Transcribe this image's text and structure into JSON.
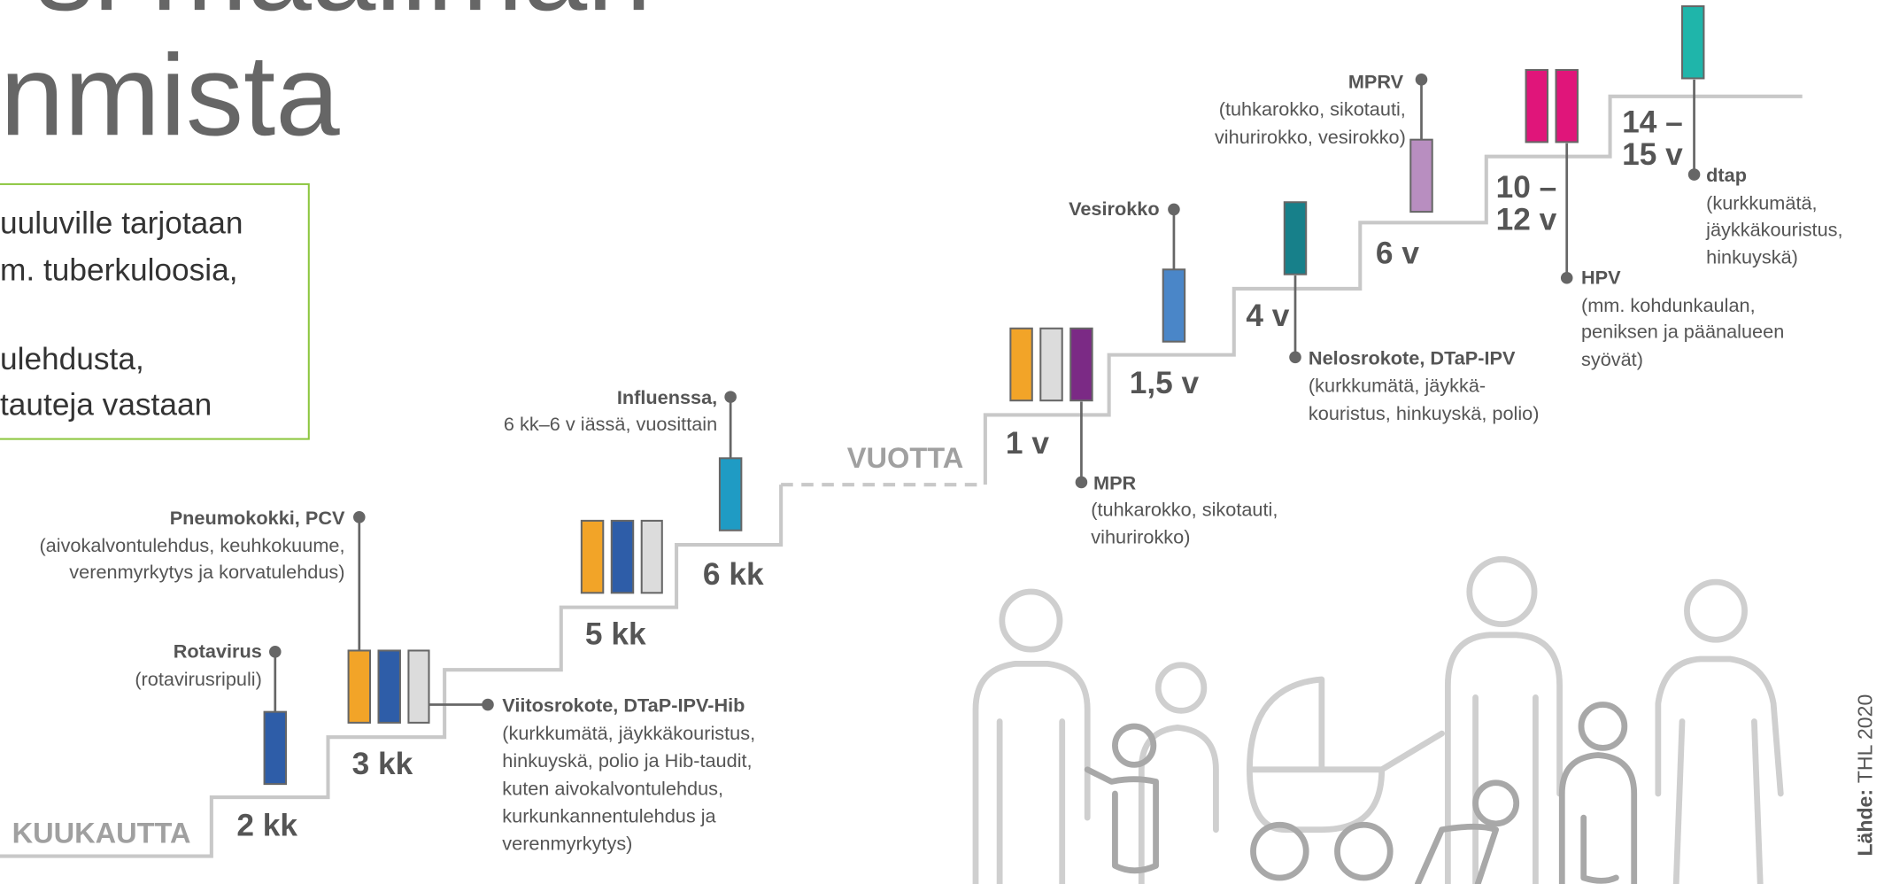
{
  "title": {
    "lines": [
      "si maailman",
      "nmista"
    ]
  },
  "info_box": {
    "lines": [
      "uuluville tarjotaan",
      "m. tuberkuloosia,",
      "ulehdusta,",
      "tauteja vastaan"
    ]
  },
  "units": {
    "months": "KUUKAUTTA",
    "years": "VUOTTA"
  },
  "steps": [
    [
      "2 kk"
    ],
    [
      "3 kk"
    ],
    [
      "5 kk"
    ],
    [
      "6 kk"
    ],
    [
      "1 v"
    ],
    [
      "1,5 v"
    ],
    [
      "4 v"
    ],
    [
      "6 v"
    ],
    [
      "10 –",
      "12 v"
    ],
    [
      "14 –",
      "15 v"
    ]
  ],
  "vaccines": [
    {
      "name": "Rotavirus",
      "details": [
        "(rotavirusripuli)"
      ]
    },
    {
      "name": "Pneumokokki, PCV",
      "details": [
        "(aivokalvontulehdus, keuhkokuume,",
        "verenmyrkytys ja korvatulehdus)"
      ]
    },
    {
      "name": "Viitosrokote, DTaP-IPV-Hib",
      "details": [
        "(kurkkumätä, jäykkäkouristus,",
        "hinkuyskä, polio ja Hib-taudit,",
        "kuten aivokalvontulehdus,",
        "kurkunkannentulehdus ja",
        "verenmyrkytys)"
      ]
    },
    {
      "name": "Influenssa,",
      "details": [
        "6 kk–6 v iässä, vuosittain"
      ]
    },
    {
      "name": "MPR",
      "details": [
        "(tuhkarokko, sikotauti,",
        "vihurirokko)"
      ]
    },
    {
      "name": "Vesirokko",
      "details": []
    },
    {
      "name": "Nelosrokote, DTaP-IPV",
      "details": [
        "(kurkkumätä, jäykkä-",
        "kouristus, hinkuyskä, polio)"
      ]
    },
    {
      "name": "MPRV",
      "details": [
        "(tuhkarokko, sikotauti,",
        "vihurirokko, vesirokko)"
      ]
    },
    {
      "name": "HPV",
      "details": [
        "(mm. kohdunkaulan,",
        "peniksen ja päänalueen",
        "syövät)"
      ]
    },
    {
      "name": "dtap",
      "details": [
        "(kurkkumätä,",
        "jäykkäkouristus,",
        "hinkuyskä)"
      ]
    }
  ],
  "source": {
    "label": "Lähde:",
    "text": "THL 2020"
  }
}
